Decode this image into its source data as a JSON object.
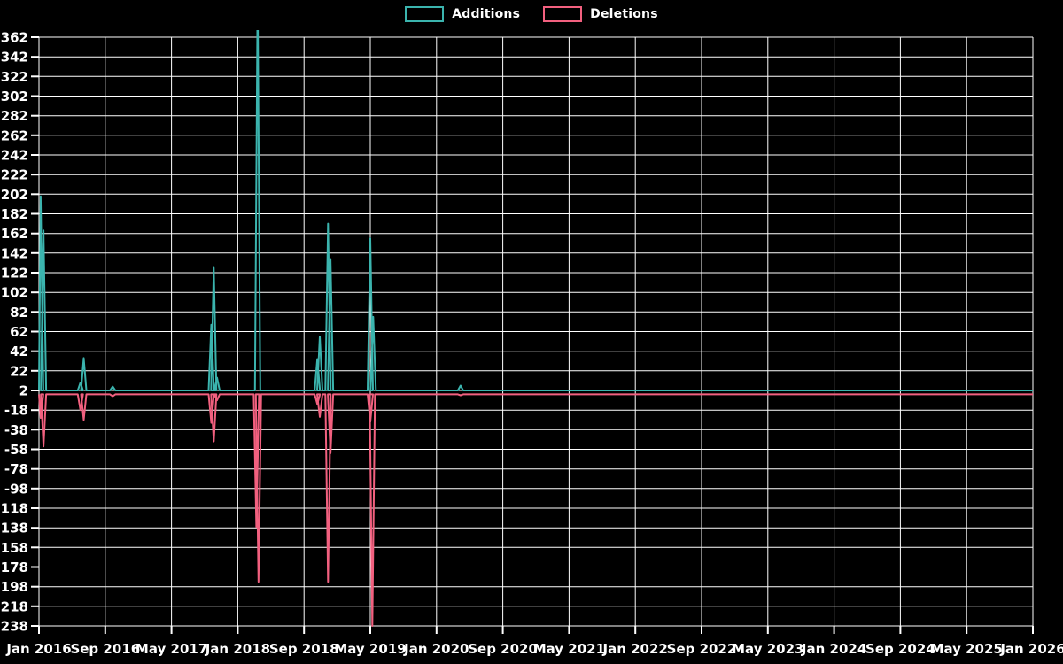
{
  "chart_data": {
    "type": "line",
    "title": "",
    "description": "Weekly additions/deletions frequency chart, spiky lines on flat baselines",
    "legend_labels": [
      "Additions",
      "Deletions"
    ],
    "legend_position": "top-center",
    "grid": true,
    "colors": {
      "additions": "#3bb4ae",
      "deletions": "#f2607f",
      "grid": "#ffffff",
      "background": "#000000",
      "text": "#ffffff"
    },
    "x_axis": {
      "unit": "months since Jan 2016",
      "domain_months": [
        0,
        120
      ],
      "tick_labels": [
        "Jan 2016",
        "Sep 2016",
        "May 2017",
        "Jan 2018",
        "Sep 2018",
        "May 2019",
        "Jan 2020",
        "Sep 2020",
        "May 2021",
        "Jan 2022",
        "Sep 2022",
        "May 2023",
        "Jan 2024",
        "Sep 2024",
        "May 2025",
        "Jan 2026"
      ]
    },
    "y_axis": {
      "min": -238,
      "max": 362,
      "tick_step": 20,
      "tick_labels": [
        362,
        342,
        322,
        302,
        282,
        262,
        242,
        222,
        202,
        182,
        162,
        142,
        122,
        102,
        82,
        62,
        42,
        22,
        2,
        -18,
        -38,
        -58,
        -78,
        -98,
        -118,
        -138,
        -158,
        -178,
        -198,
        -218,
        -238
      ]
    },
    "series": [
      {
        "name": "Additions",
        "color_key": "additions",
        "baseline": 2,
        "spikes": [
          [
            0.2,
            200
          ],
          [
            0.55,
            165
          ],
          [
            5.0,
            10
          ],
          [
            5.4,
            35
          ],
          [
            8.9,
            6
          ],
          [
            20.8,
            69
          ],
          [
            21.1,
            127
          ],
          [
            21.5,
            15
          ],
          [
            26.4,
            410
          ],
          [
            33.6,
            34
          ],
          [
            33.9,
            57
          ],
          [
            34.9,
            172
          ],
          [
            35.2,
            136
          ],
          [
            40.0,
            157
          ],
          [
            40.35,
            77
          ],
          [
            50.9,
            7
          ]
        ],
        "note": "Mar 2018 peak exceeds axis max and is rendered clipped just above the 362 gridline"
      },
      {
        "name": "Deletions",
        "color_key": "deletions",
        "baseline": -2,
        "spikes": [
          [
            0.2,
            -26
          ],
          [
            0.55,
            -55
          ],
          [
            5.0,
            -18
          ],
          [
            5.4,
            -28
          ],
          [
            8.9,
            -4
          ],
          [
            20.8,
            -31
          ],
          [
            21.1,
            -50
          ],
          [
            21.5,
            -8
          ],
          [
            26.25,
            -137
          ],
          [
            26.5,
            -193
          ],
          [
            33.6,
            -12
          ],
          [
            33.9,
            -25
          ],
          [
            34.9,
            -193
          ],
          [
            35.2,
            -62
          ],
          [
            40.0,
            -30
          ],
          [
            40.25,
            -238
          ],
          [
            50.9,
            -3
          ]
        ]
      }
    ]
  }
}
